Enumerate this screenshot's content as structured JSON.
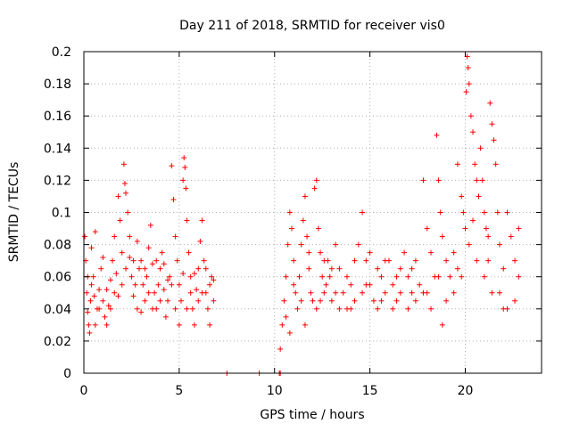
{
  "chart_data": {
    "type": "scatter",
    "title": "Day 211 of 2018, SRMTID for receiver vis0",
    "xlabel": "GPS time / hours",
    "ylabel": "SRMTID / TECUs",
    "xlim": [
      0,
      24
    ],
    "ylim": [
      0,
      0.2
    ],
    "xticks": [
      0,
      5,
      10,
      15,
      20
    ],
    "xtick_labels": [
      "0",
      "5",
      "10",
      "15",
      "20"
    ],
    "yticks": [
      0,
      0.02,
      0.04,
      0.06,
      0.08,
      0.1,
      0.12,
      0.14,
      0.16,
      0.18,
      0.2
    ],
    "ytick_labels": [
      "0",
      "0.02",
      "0.04",
      "0.06",
      "0.08",
      "0.1",
      "0.12",
      "0.14",
      "0.16",
      "0.18",
      "0.2"
    ],
    "grid": true,
    "marker": "+",
    "series": [
      {
        "name": "SRMTID",
        "color": "#ff0000",
        "points": [
          [
            0.05,
            0.085
          ],
          [
            0.1,
            0.07
          ],
          [
            0.15,
            0.05
          ],
          [
            0.2,
            0.038
          ],
          [
            0.25,
            0.03
          ],
          [
            0.3,
            0.025
          ],
          [
            0.35,
            0.045
          ],
          [
            0.4,
            0.055
          ],
          [
            0.5,
            0.06
          ],
          [
            0.55,
            0.048
          ],
          [
            0.6,
            0.088
          ],
          [
            0.7,
            0.04
          ],
          [
            0.8,
            0.052
          ],
          [
            0.9,
            0.065
          ],
          [
            1.0,
            0.045
          ],
          [
            1.1,
            0.035
          ],
          [
            1.2,
            0.03
          ],
          [
            1.3,
            0.042
          ],
          [
            1.4,
            0.058
          ],
          [
            1.5,
            0.07
          ],
          [
            1.6,
            0.05
          ],
          [
            1.7,
            0.062
          ],
          [
            1.8,
            0.11
          ],
          [
            1.9,
            0.095
          ],
          [
            2.0,
            0.075
          ],
          [
            2.1,
            0.13
          ],
          [
            2.15,
            0.118
          ],
          [
            2.2,
            0.112
          ],
          [
            2.3,
            0.1
          ],
          [
            2.4,
            0.085
          ],
          [
            2.5,
            0.06
          ],
          [
            2.6,
            0.048
          ],
          [
            2.7,
            0.055
          ],
          [
            2.8,
            0.04
          ],
          [
            2.9,
            0.065
          ],
          [
            3.0,
            0.07
          ],
          [
            3.1,
            0.055
          ],
          [
            3.2,
            0.045
          ],
          [
            3.3,
            0.06
          ],
          [
            3.4,
            0.078
          ],
          [
            3.5,
            0.092
          ],
          [
            3.6,
            0.068
          ],
          [
            3.7,
            0.05
          ],
          [
            3.8,
            0.04
          ],
          [
            3.9,
            0.055
          ],
          [
            4.0,
            0.065
          ],
          [
            4.1,
            0.075
          ],
          [
            4.2,
            0.052
          ],
          [
            4.3,
            0.035
          ],
          [
            4.4,
            0.045
          ],
          [
            4.5,
            0.06
          ],
          [
            4.6,
            0.129
          ],
          [
            4.7,
            0.108
          ],
          [
            4.8,
            0.085
          ],
          [
            4.9,
            0.07
          ],
          [
            5.0,
            0.055
          ],
          [
            5.1,
            0.045
          ],
          [
            5.2,
            0.12
          ],
          [
            5.25,
            0.134
          ],
          [
            5.3,
            0.128
          ],
          [
            5.35,
            0.115
          ],
          [
            5.4,
            0.095
          ],
          [
            5.5,
            0.075
          ],
          [
            5.6,
            0.06
          ],
          [
            5.7,
            0.04
          ],
          [
            5.8,
            0.03
          ],
          [
            5.9,
            0.052
          ],
          [
            6.0,
            0.065
          ],
          [
            6.1,
            0.082
          ],
          [
            6.2,
            0.095
          ],
          [
            6.3,
            0.07
          ],
          [
            6.4,
            0.05
          ],
          [
            6.5,
            0.04
          ],
          [
            6.6,
            0.055
          ],
          [
            6.7,
            0.06
          ],
          [
            6.8,
            0.045
          ],
          [
            0.2,
            0.06
          ],
          [
            0.6,
            0.03
          ],
          [
            1.0,
            0.072
          ],
          [
            1.4,
            0.04
          ],
          [
            1.8,
            0.048
          ],
          [
            2.2,
            0.065
          ],
          [
            2.6,
            0.07
          ],
          [
            3.0,
            0.038
          ],
          [
            3.4,
            0.05
          ],
          [
            3.8,
            0.07
          ],
          [
            4.2,
            0.068
          ],
          [
            4.6,
            0.055
          ],
          [
            5.0,
            0.03
          ],
          [
            5.4,
            0.04
          ],
          [
            5.8,
            0.062
          ],
          [
            6.2,
            0.05
          ],
          [
            6.6,
            0.03
          ],
          [
            0.4,
            0.078
          ],
          [
            0.8,
            0.04
          ],
          [
            1.2,
            0.052
          ],
          [
            1.6,
            0.085
          ],
          [
            2.0,
            0.055
          ],
          [
            2.4,
            0.072
          ],
          [
            2.8,
            0.082
          ],
          [
            3.2,
            0.065
          ],
          [
            3.6,
            0.04
          ],
          [
            4.0,
            0.045
          ],
          [
            4.4,
            0.058
          ],
          [
            4.8,
            0.04
          ],
          [
            5.2,
            0.062
          ],
          [
            5.6,
            0.05
          ],
          [
            6.0,
            0.045
          ],
          [
            6.4,
            0.065
          ],
          [
            6.8,
            0.058
          ],
          [
            7.5,
            0.0
          ],
          [
            9.2,
            0.0
          ],
          [
            10.25,
            0.0
          ],
          [
            10.3,
            0.0
          ],
          [
            10.3,
            0.015
          ],
          [
            10.4,
            0.03
          ],
          [
            10.5,
            0.045
          ],
          [
            10.6,
            0.06
          ],
          [
            10.7,
            0.08
          ],
          [
            10.8,
            0.1
          ],
          [
            10.9,
            0.09
          ],
          [
            11.0,
            0.07
          ],
          [
            11.1,
            0.05
          ],
          [
            11.2,
            0.04
          ],
          [
            11.3,
            0.06
          ],
          [
            11.4,
            0.08
          ],
          [
            11.5,
            0.095
          ],
          [
            11.6,
            0.11
          ],
          [
            11.7,
            0.085
          ],
          [
            11.8,
            0.065
          ],
          [
            11.9,
            0.05
          ],
          [
            12.0,
            0.045
          ],
          [
            12.1,
            0.115
          ],
          [
            12.2,
            0.12
          ],
          [
            12.3,
            0.09
          ],
          [
            12.4,
            0.075
          ],
          [
            12.5,
            0.06
          ],
          [
            12.6,
            0.05
          ],
          [
            12.7,
            0.055
          ],
          [
            12.8,
            0.07
          ],
          [
            12.9,
            0.06
          ],
          [
            13.0,
            0.045
          ],
          [
            13.2,
            0.08
          ],
          [
            13.4,
            0.065
          ],
          [
            13.6,
            0.05
          ],
          [
            13.8,
            0.04
          ],
          [
            14.0,
            0.055
          ],
          [
            14.2,
            0.07
          ],
          [
            14.4,
            0.08
          ],
          [
            14.6,
            0.1
          ],
          [
            14.8,
            0.07
          ],
          [
            15.0,
            0.055
          ],
          [
            15.2,
            0.045
          ],
          [
            15.4,
            0.065
          ],
          [
            15.6,
            0.06
          ],
          [
            15.8,
            0.05
          ],
          [
            16.0,
            0.07
          ],
          [
            16.2,
            0.055
          ],
          [
            16.4,
            0.045
          ],
          [
            16.6,
            0.065
          ],
          [
            16.8,
            0.075
          ],
          [
            17.0,
            0.06
          ],
          [
            17.2,
            0.05
          ],
          [
            17.4,
            0.07
          ],
          [
            17.6,
            0.055
          ],
          [
            17.8,
            0.12
          ],
          [
            18.0,
            0.09
          ],
          [
            18.2,
            0.075
          ],
          [
            18.4,
            0.06
          ],
          [
            18.5,
            0.148
          ],
          [
            18.6,
            0.12
          ],
          [
            18.7,
            0.1
          ],
          [
            18.8,
            0.085
          ],
          [
            19.0,
            0.07
          ],
          [
            19.2,
            0.06
          ],
          [
            19.4,
            0.075
          ],
          [
            19.6,
            0.13
          ],
          [
            19.8,
            0.11
          ],
          [
            19.9,
            0.1
          ],
          [
            20.0,
            0.09
          ],
          [
            20.05,
            0.175
          ],
          [
            20.1,
            0.197
          ],
          [
            20.15,
            0.19
          ],
          [
            20.2,
            0.18
          ],
          [
            20.3,
            0.16
          ],
          [
            20.4,
            0.15
          ],
          [
            20.5,
            0.13
          ],
          [
            20.6,
            0.12
          ],
          [
            20.7,
            0.11
          ],
          [
            20.8,
            0.14
          ],
          [
            20.9,
            0.12
          ],
          [
            21.0,
            0.1
          ],
          [
            21.1,
            0.09
          ],
          [
            21.2,
            0.085
          ],
          [
            21.3,
            0.168
          ],
          [
            21.4,
            0.155
          ],
          [
            21.5,
            0.145
          ],
          [
            21.6,
            0.13
          ],
          [
            21.7,
            0.1
          ],
          [
            21.8,
            0.08
          ],
          [
            22.0,
            0.065
          ],
          [
            22.2,
            0.1
          ],
          [
            22.4,
            0.085
          ],
          [
            22.6,
            0.07
          ],
          [
            22.8,
            0.06
          ],
          [
            10.6,
            0.035
          ],
          [
            11.0,
            0.055
          ],
          [
            11.4,
            0.045
          ],
          [
            11.8,
            0.075
          ],
          [
            12.2,
            0.04
          ],
          [
            12.6,
            0.07
          ],
          [
            13.0,
            0.065
          ],
          [
            13.4,
            0.04
          ],
          [
            13.8,
            0.06
          ],
          [
            14.2,
            0.045
          ],
          [
            14.6,
            0.05
          ],
          [
            15.0,
            0.075
          ],
          [
            15.4,
            0.04
          ],
          [
            15.8,
            0.07
          ],
          [
            16.2,
            0.04
          ],
          [
            16.6,
            0.05
          ],
          [
            17.0,
            0.04
          ],
          [
            17.4,
            0.045
          ],
          [
            17.8,
            0.05
          ],
          [
            18.2,
            0.04
          ],
          [
            18.6,
            0.06
          ],
          [
            19.0,
            0.045
          ],
          [
            19.4,
            0.05
          ],
          [
            19.8,
            0.06
          ],
          [
            20.2,
            0.08
          ],
          [
            20.6,
            0.07
          ],
          [
            21.0,
            0.06
          ],
          [
            21.4,
            0.05
          ],
          [
            21.8,
            0.05
          ],
          [
            22.2,
            0.04
          ],
          [
            22.6,
            0.045
          ],
          [
            10.8,
            0.025
          ],
          [
            11.6,
            0.03
          ],
          [
            12.4,
            0.045
          ],
          [
            13.2,
            0.05
          ],
          [
            14.0,
            0.04
          ],
          [
            14.8,
            0.055
          ],
          [
            15.6,
            0.045
          ],
          [
            16.4,
            0.06
          ],
          [
            17.2,
            0.065
          ],
          [
            18.0,
            0.05
          ],
          [
            18.8,
            0.03
          ],
          [
            19.6,
            0.065
          ],
          [
            20.4,
            0.095
          ],
          [
            21.2,
            0.07
          ],
          [
            22.0,
            0.04
          ],
          [
            22.8,
            0.09
          ]
        ]
      }
    ]
  }
}
